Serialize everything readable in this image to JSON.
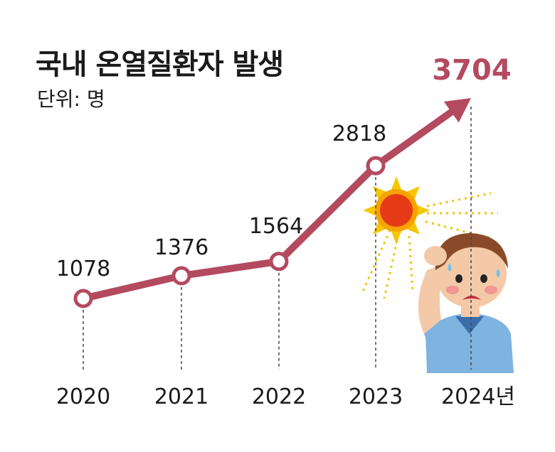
{
  "chart_data": {
    "type": "line",
    "title": "국내 온열질환자 발생",
    "subtitle": "단위: 명",
    "categories": [
      "2020",
      "2021",
      "2022",
      "2023",
      "2024년"
    ],
    "series": [
      {
        "values": [
          1078,
          1376,
          1564,
          2818,
          3704
        ]
      }
    ],
    "data_labels": [
      "1078",
      "1376",
      "1564",
      "2818",
      "3704"
    ],
    "highlight_label_index": 4,
    "colors": {
      "line": "#b34a60",
      "highlight_text": "#b34a60",
      "text": "#1a1a1a",
      "dashed_guides": "#444444"
    },
    "illustration": "sweating-boy-with-sun"
  }
}
